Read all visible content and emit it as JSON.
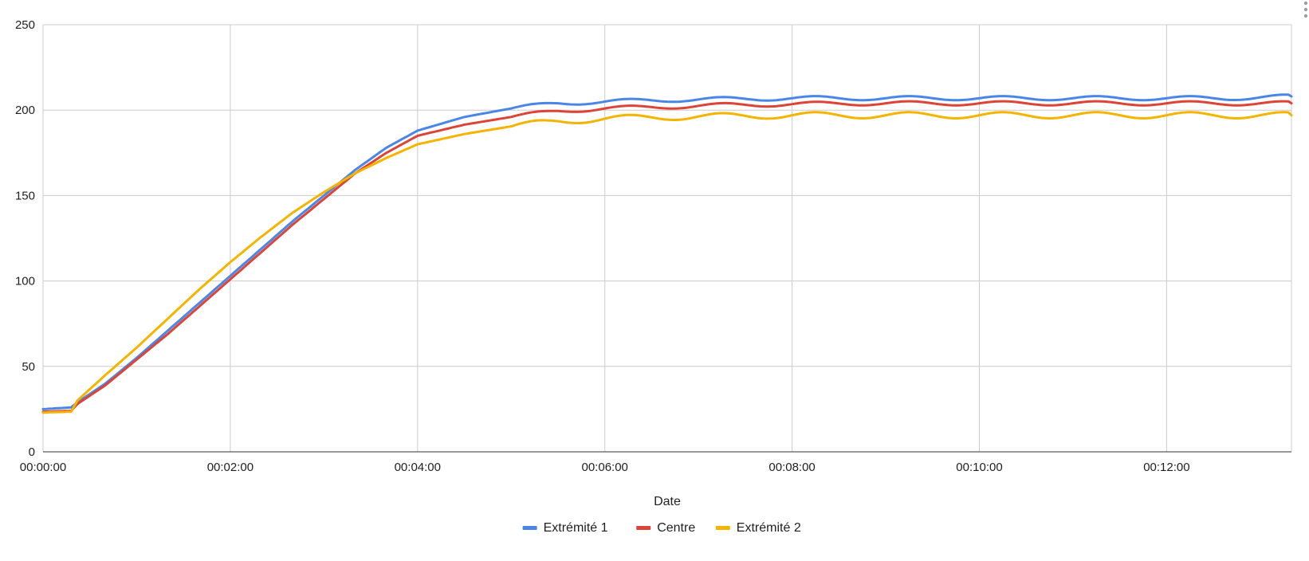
{
  "chart_data": {
    "type": "line",
    "title": "",
    "xlabel": "Date",
    "ylabel": "",
    "x_unit": "seconds",
    "xlim": [
      0,
      800
    ],
    "ylim": [
      0,
      250
    ],
    "x_ticks": [
      {
        "value": 0,
        "label": "00:00:00"
      },
      {
        "value": 120,
        "label": "00:02:00"
      },
      {
        "value": 240,
        "label": "00:04:00"
      },
      {
        "value": 360,
        "label": "00:06:00"
      },
      {
        "value": 480,
        "label": "00:08:00"
      },
      {
        "value": 600,
        "label": "00:10:00"
      },
      {
        "value": 720,
        "label": "00:12:00"
      }
    ],
    "y_ticks": [
      {
        "value": 0,
        "label": "0"
      },
      {
        "value": 50,
        "label": "50"
      },
      {
        "value": 100,
        "label": "100"
      },
      {
        "value": 150,
        "label": "150"
      },
      {
        "value": 200,
        "label": "200"
      },
      {
        "value": 250,
        "label": "250"
      }
    ],
    "grid": true,
    "legend_position": "bottom",
    "series": [
      {
        "name": "Extrémité 1",
        "color": "#4a86e8",
        "points": [
          [
            0,
            25
          ],
          [
            18,
            26
          ],
          [
            22,
            29
          ],
          [
            40,
            40
          ],
          [
            60,
            55
          ],
          [
            80,
            71
          ],
          [
            100,
            87
          ],
          [
            120,
            103
          ],
          [
            140,
            119
          ],
          [
            160,
            135
          ],
          [
            180,
            150
          ],
          [
            200,
            165
          ],
          [
            220,
            178
          ],
          [
            240,
            188
          ],
          [
            270,
            196
          ],
          [
            300,
            201
          ],
          [
            330,
            204
          ],
          [
            360,
            205
          ],
          [
            400,
            206
          ],
          [
            440,
            206.5
          ],
          [
            480,
            207
          ],
          [
            520,
            207
          ],
          [
            560,
            207
          ],
          [
            600,
            207
          ],
          [
            640,
            207
          ],
          [
            680,
            207
          ],
          [
            720,
            207
          ],
          [
            760,
            207
          ],
          [
            800,
            208
          ]
        ]
      },
      {
        "name": "Centre",
        "color": "#db4437",
        "points": [
          [
            0,
            23.5
          ],
          [
            18,
            24
          ],
          [
            22,
            28
          ],
          [
            40,
            39
          ],
          [
            60,
            54
          ],
          [
            80,
            69
          ],
          [
            100,
            85
          ],
          [
            120,
            101
          ],
          [
            140,
            117
          ],
          [
            160,
            133
          ],
          [
            180,
            148
          ],
          [
            200,
            163
          ],
          [
            220,
            175
          ],
          [
            240,
            185
          ],
          [
            270,
            191.5
          ],
          [
            300,
            196
          ],
          [
            330,
            199.5
          ],
          [
            360,
            201
          ],
          [
            400,
            202
          ],
          [
            440,
            203
          ],
          [
            480,
            203.5
          ],
          [
            520,
            204
          ],
          [
            560,
            204
          ],
          [
            600,
            204
          ],
          [
            640,
            204
          ],
          [
            680,
            204
          ],
          [
            720,
            204
          ],
          [
            760,
            204
          ],
          [
            800,
            204
          ]
        ]
      },
      {
        "name": "Extrémité 2",
        "color": "#f4b400",
        "points": [
          [
            0,
            23
          ],
          [
            18,
            23.5
          ],
          [
            22,
            30
          ],
          [
            40,
            45
          ],
          [
            60,
            61
          ],
          [
            80,
            78
          ],
          [
            100,
            95
          ],
          [
            120,
            111
          ],
          [
            140,
            126
          ],
          [
            160,
            140
          ],
          [
            180,
            152
          ],
          [
            200,
            163
          ],
          [
            220,
            172
          ],
          [
            240,
            180
          ],
          [
            270,
            186
          ],
          [
            300,
            190.5
          ],
          [
            330,
            193.5
          ],
          [
            360,
            195
          ],
          [
            400,
            196
          ],
          [
            440,
            196.5
          ],
          [
            480,
            197
          ],
          [
            520,
            197
          ],
          [
            560,
            197
          ],
          [
            600,
            197
          ],
          [
            640,
            197
          ],
          [
            680,
            197
          ],
          [
            720,
            197
          ],
          [
            760,
            197
          ],
          [
            800,
            197
          ]
        ]
      }
    ]
  }
}
